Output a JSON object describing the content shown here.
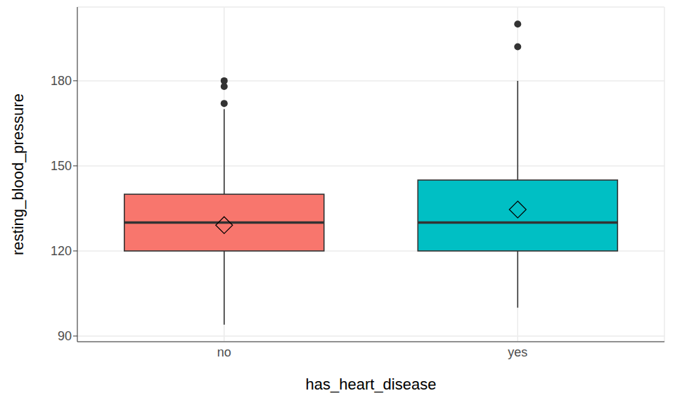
{
  "chart_data": {
    "type": "box",
    "categories": [
      "no",
      "yes"
    ],
    "colors": [
      "#F8766D",
      "#00BFC4"
    ],
    "boxes": [
      {
        "whisker_low": 94,
        "q1": 120,
        "median": 130,
        "q3": 140,
        "whisker_high": 170,
        "mean": 129.1,
        "outliers": [
          172,
          178,
          180
        ]
      },
      {
        "whisker_low": 100,
        "q1": 120,
        "median": 130,
        "q3": 145,
        "whisker_high": 180,
        "mean": 134.6,
        "outliers": [
          192,
          200
        ]
      }
    ],
    "x_label": "has_heart_disease",
    "y_label": "resting_blood_pressure",
    "ylim": [
      88,
      206
    ],
    "yticks": [
      90,
      120,
      150,
      180
    ],
    "grid": true,
    "marker": "diamond"
  }
}
